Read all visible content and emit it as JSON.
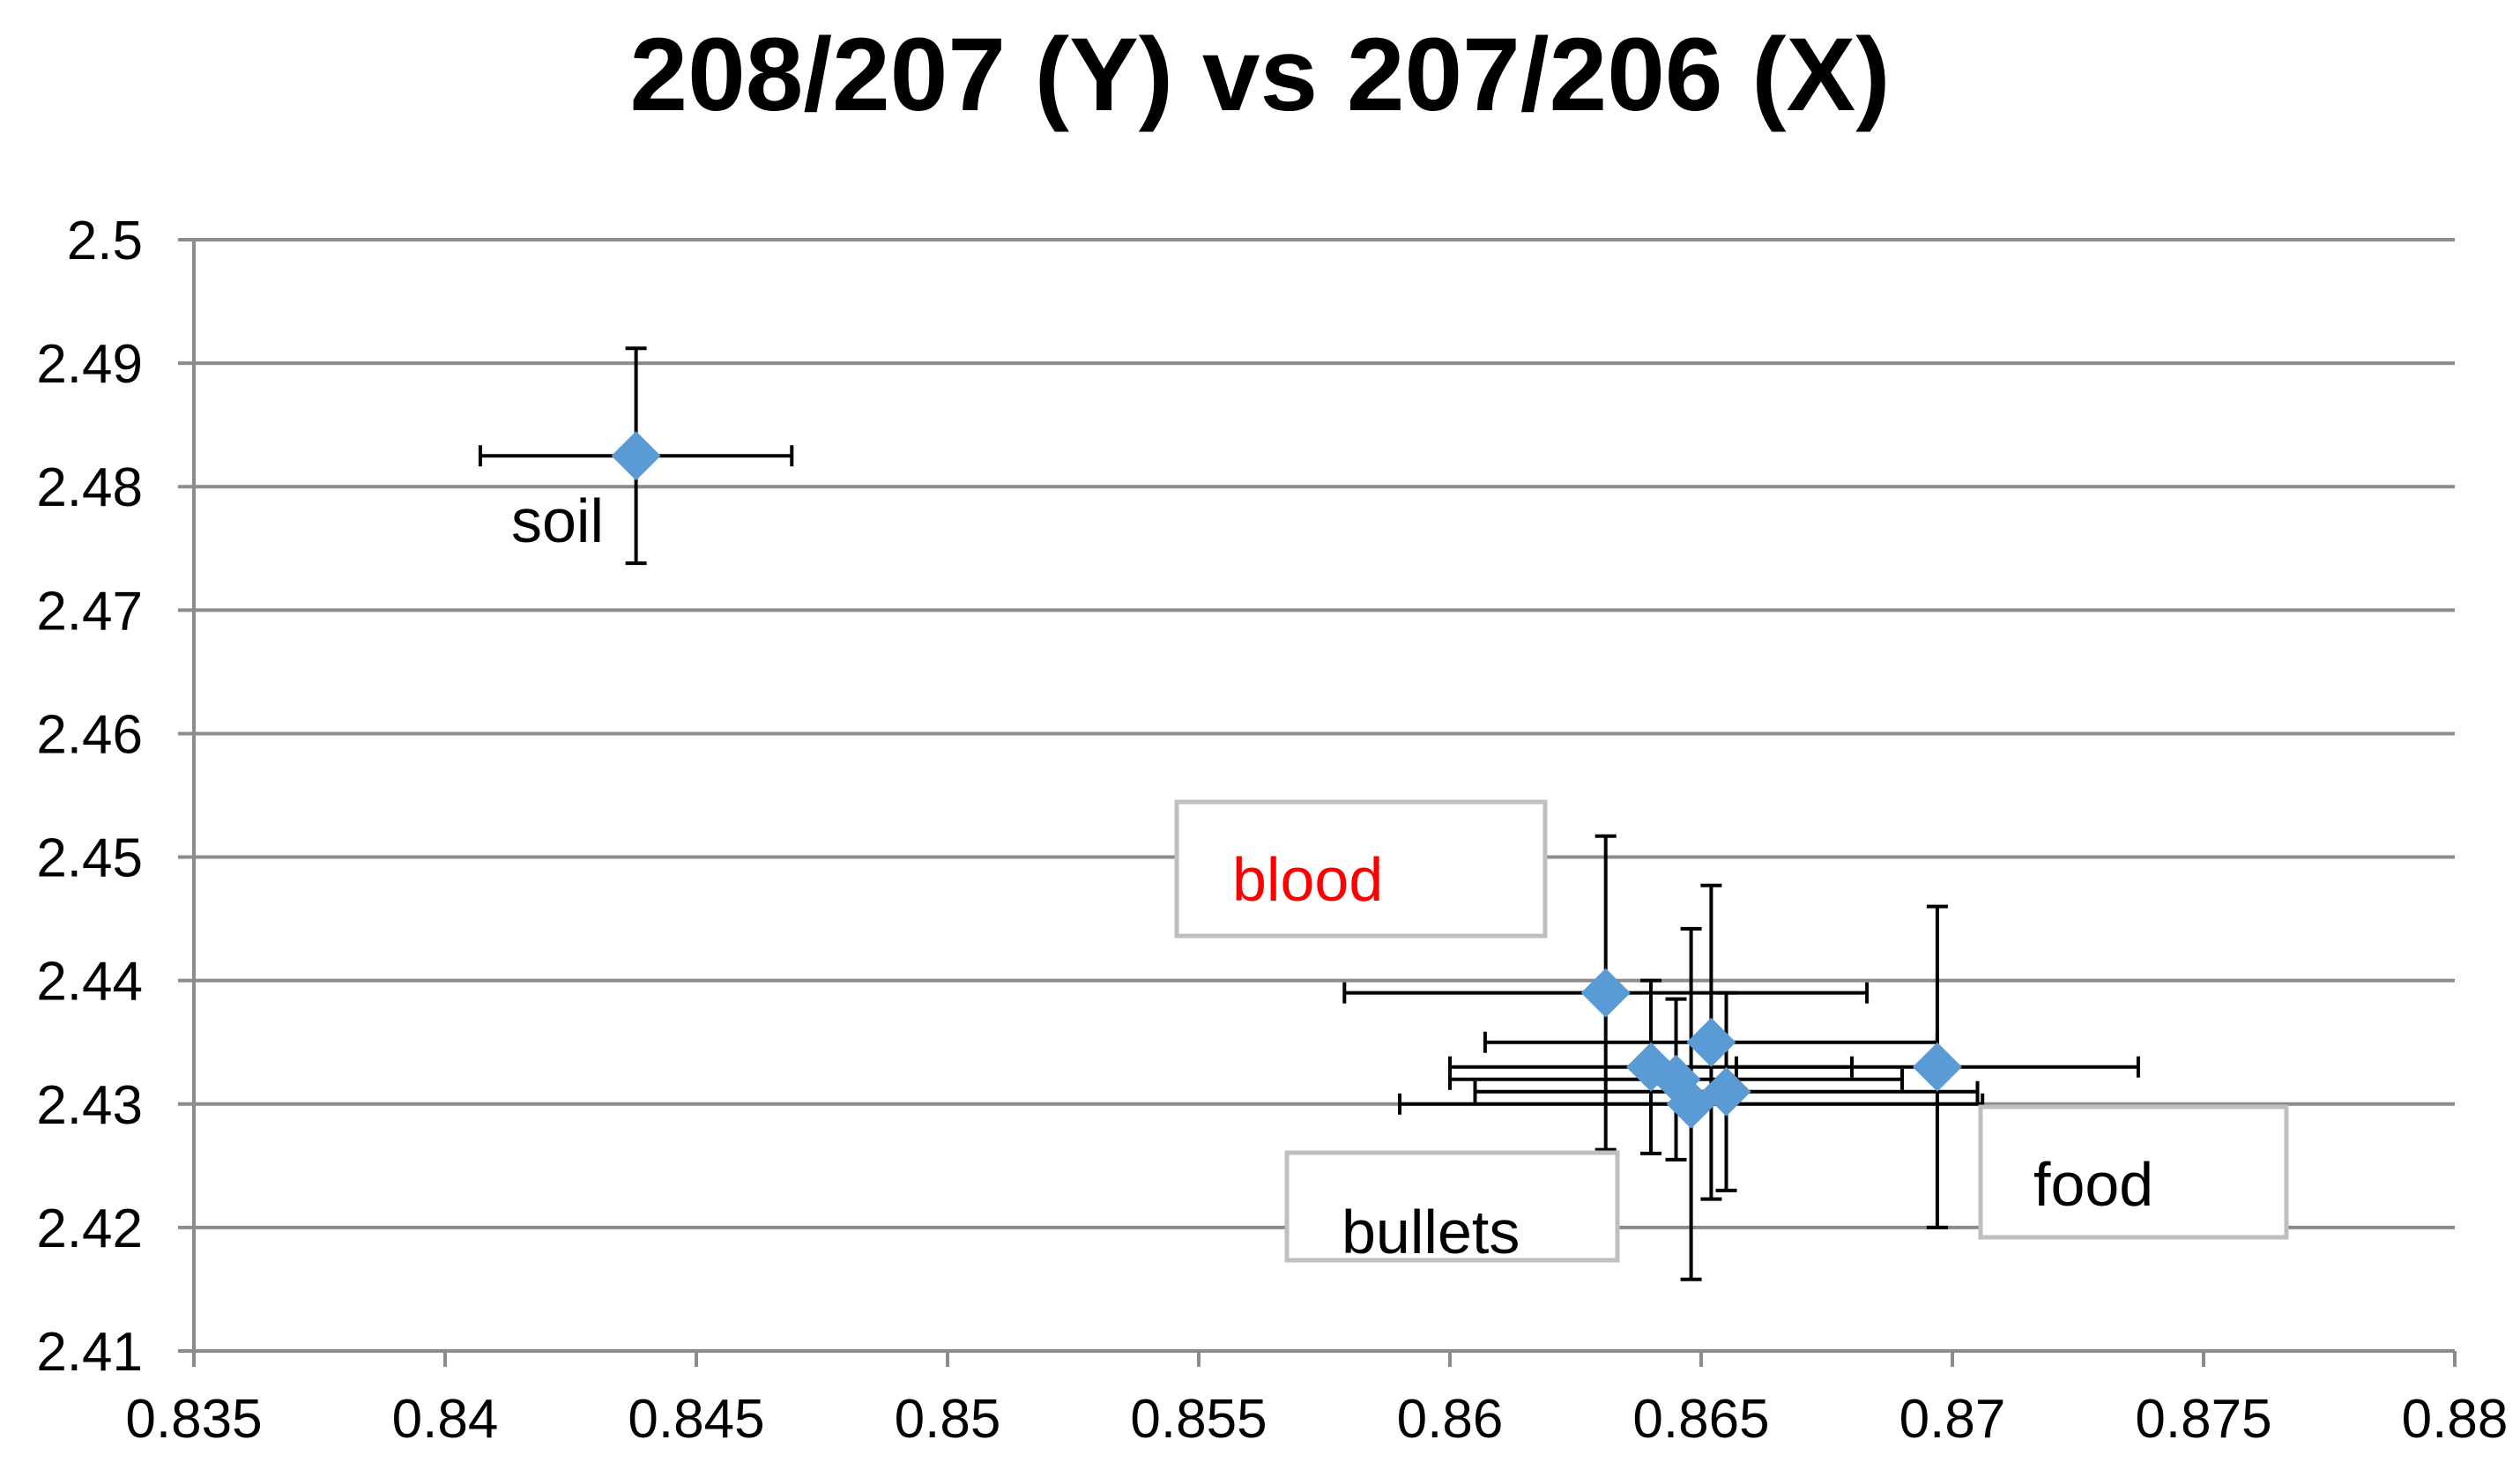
{
  "chart_data": {
    "type": "scatter",
    "title": "208/207 (Y) vs 207/206 (X)",
    "xlabel": "",
    "ylabel": "",
    "xlim": [
      0.835,
      0.88
    ],
    "ylim": [
      2.41,
      2.5
    ],
    "x_ticks": [
      "0.835",
      "0.84",
      "0.845",
      "0.85",
      "0.855",
      "0.86",
      "0.865",
      "0.87",
      "0.875",
      "0.88"
    ],
    "y_ticks": [
      "2.41",
      "2.42",
      "2.43",
      "2.44",
      "2.45",
      "2.46",
      "2.47",
      "2.48",
      "2.49",
      "2.5"
    ],
    "grid": "horizontal",
    "marker": "diamond",
    "series": [
      {
        "color": "#5B9BD5",
        "points": [
          {
            "x": 0.8438,
            "y": 2.4825,
            "xerr": 0.0031,
            "yerr": 0.0087
          },
          {
            "x": 0.8631,
            "y": 2.439,
            "xerr": 0.0052,
            "yerr": 0.0127
          },
          {
            "x": 0.8652,
            "y": 2.435,
            "xerr": 0.0045,
            "yerr": 0.0127
          },
          {
            "x": 0.8697,
            "y": 2.433,
            "xerr": 0.004,
            "yerr": 0.013
          },
          {
            "x": 0.864,
            "y": 2.433,
            "xerr": 0.004,
            "yerr": 0.007
          },
          {
            "x": 0.8645,
            "y": 2.432,
            "xerr": 0.0045,
            "yerr": 0.0065
          },
          {
            "x": 0.8648,
            "y": 2.43,
            "xerr": 0.0058,
            "yerr": 0.0142
          },
          {
            "x": 0.8655,
            "y": 2.431,
            "xerr": 0.005,
            "yerr": 0.008
          }
        ]
      }
    ],
    "annotations": [
      {
        "text": "soil",
        "color": "#000000",
        "boxed": false
      },
      {
        "text": "blood",
        "color": "#FF0000",
        "boxed": true
      },
      {
        "text": "bullets",
        "color": "#000000",
        "boxed": true
      },
      {
        "text": "food",
        "color": "#000000",
        "boxed": true
      }
    ],
    "colors": {
      "grid": "#8C8C8C",
      "axis": "#8C8C8C",
      "errorbar": "#000000",
      "box_border": "#BFBFBF"
    }
  }
}
